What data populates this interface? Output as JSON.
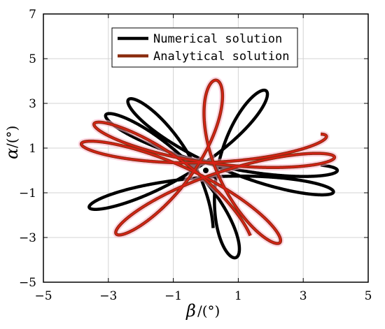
{
  "chart_data": {
    "type": "line",
    "title": "",
    "xlabel": {
      "symbol": "β",
      "unit": "/(°)"
    },
    "ylabel": {
      "symbol": "α",
      "unit": "/(°)"
    },
    "xlim": [
      -5,
      5
    ],
    "ylim": [
      -5,
      7
    ],
    "xticks": [
      -5,
      -3,
      -1,
      1,
      3,
      5
    ],
    "yticks": [
      -5,
      -3,
      -1,
      1,
      3,
      5,
      7
    ],
    "grid": true,
    "legend_position": "top-center",
    "series": [
      {
        "name": "Numerical solution",
        "color": "#000000",
        "model": {
          "A": 2.15,
          "B": 1.85,
          "w1": 1.0,
          "w2": -1.55,
          "x0": 0.05,
          "y0": 0.0,
          "rotation_deg": 0,
          "turns": 2.7,
          "start": -0.4
        }
      },
      {
        "name": "Analytical solution",
        "color": "#8B2E10",
        "highlight": "#FF1A1A",
        "model": {
          "A": 2.15,
          "B": 1.85,
          "w1": 1.0,
          "w2": -1.55,
          "x0": 0.0,
          "y0": 0.05,
          "rotation_deg": 22,
          "turns": 2.7,
          "start": -0.2
        }
      }
    ]
  }
}
